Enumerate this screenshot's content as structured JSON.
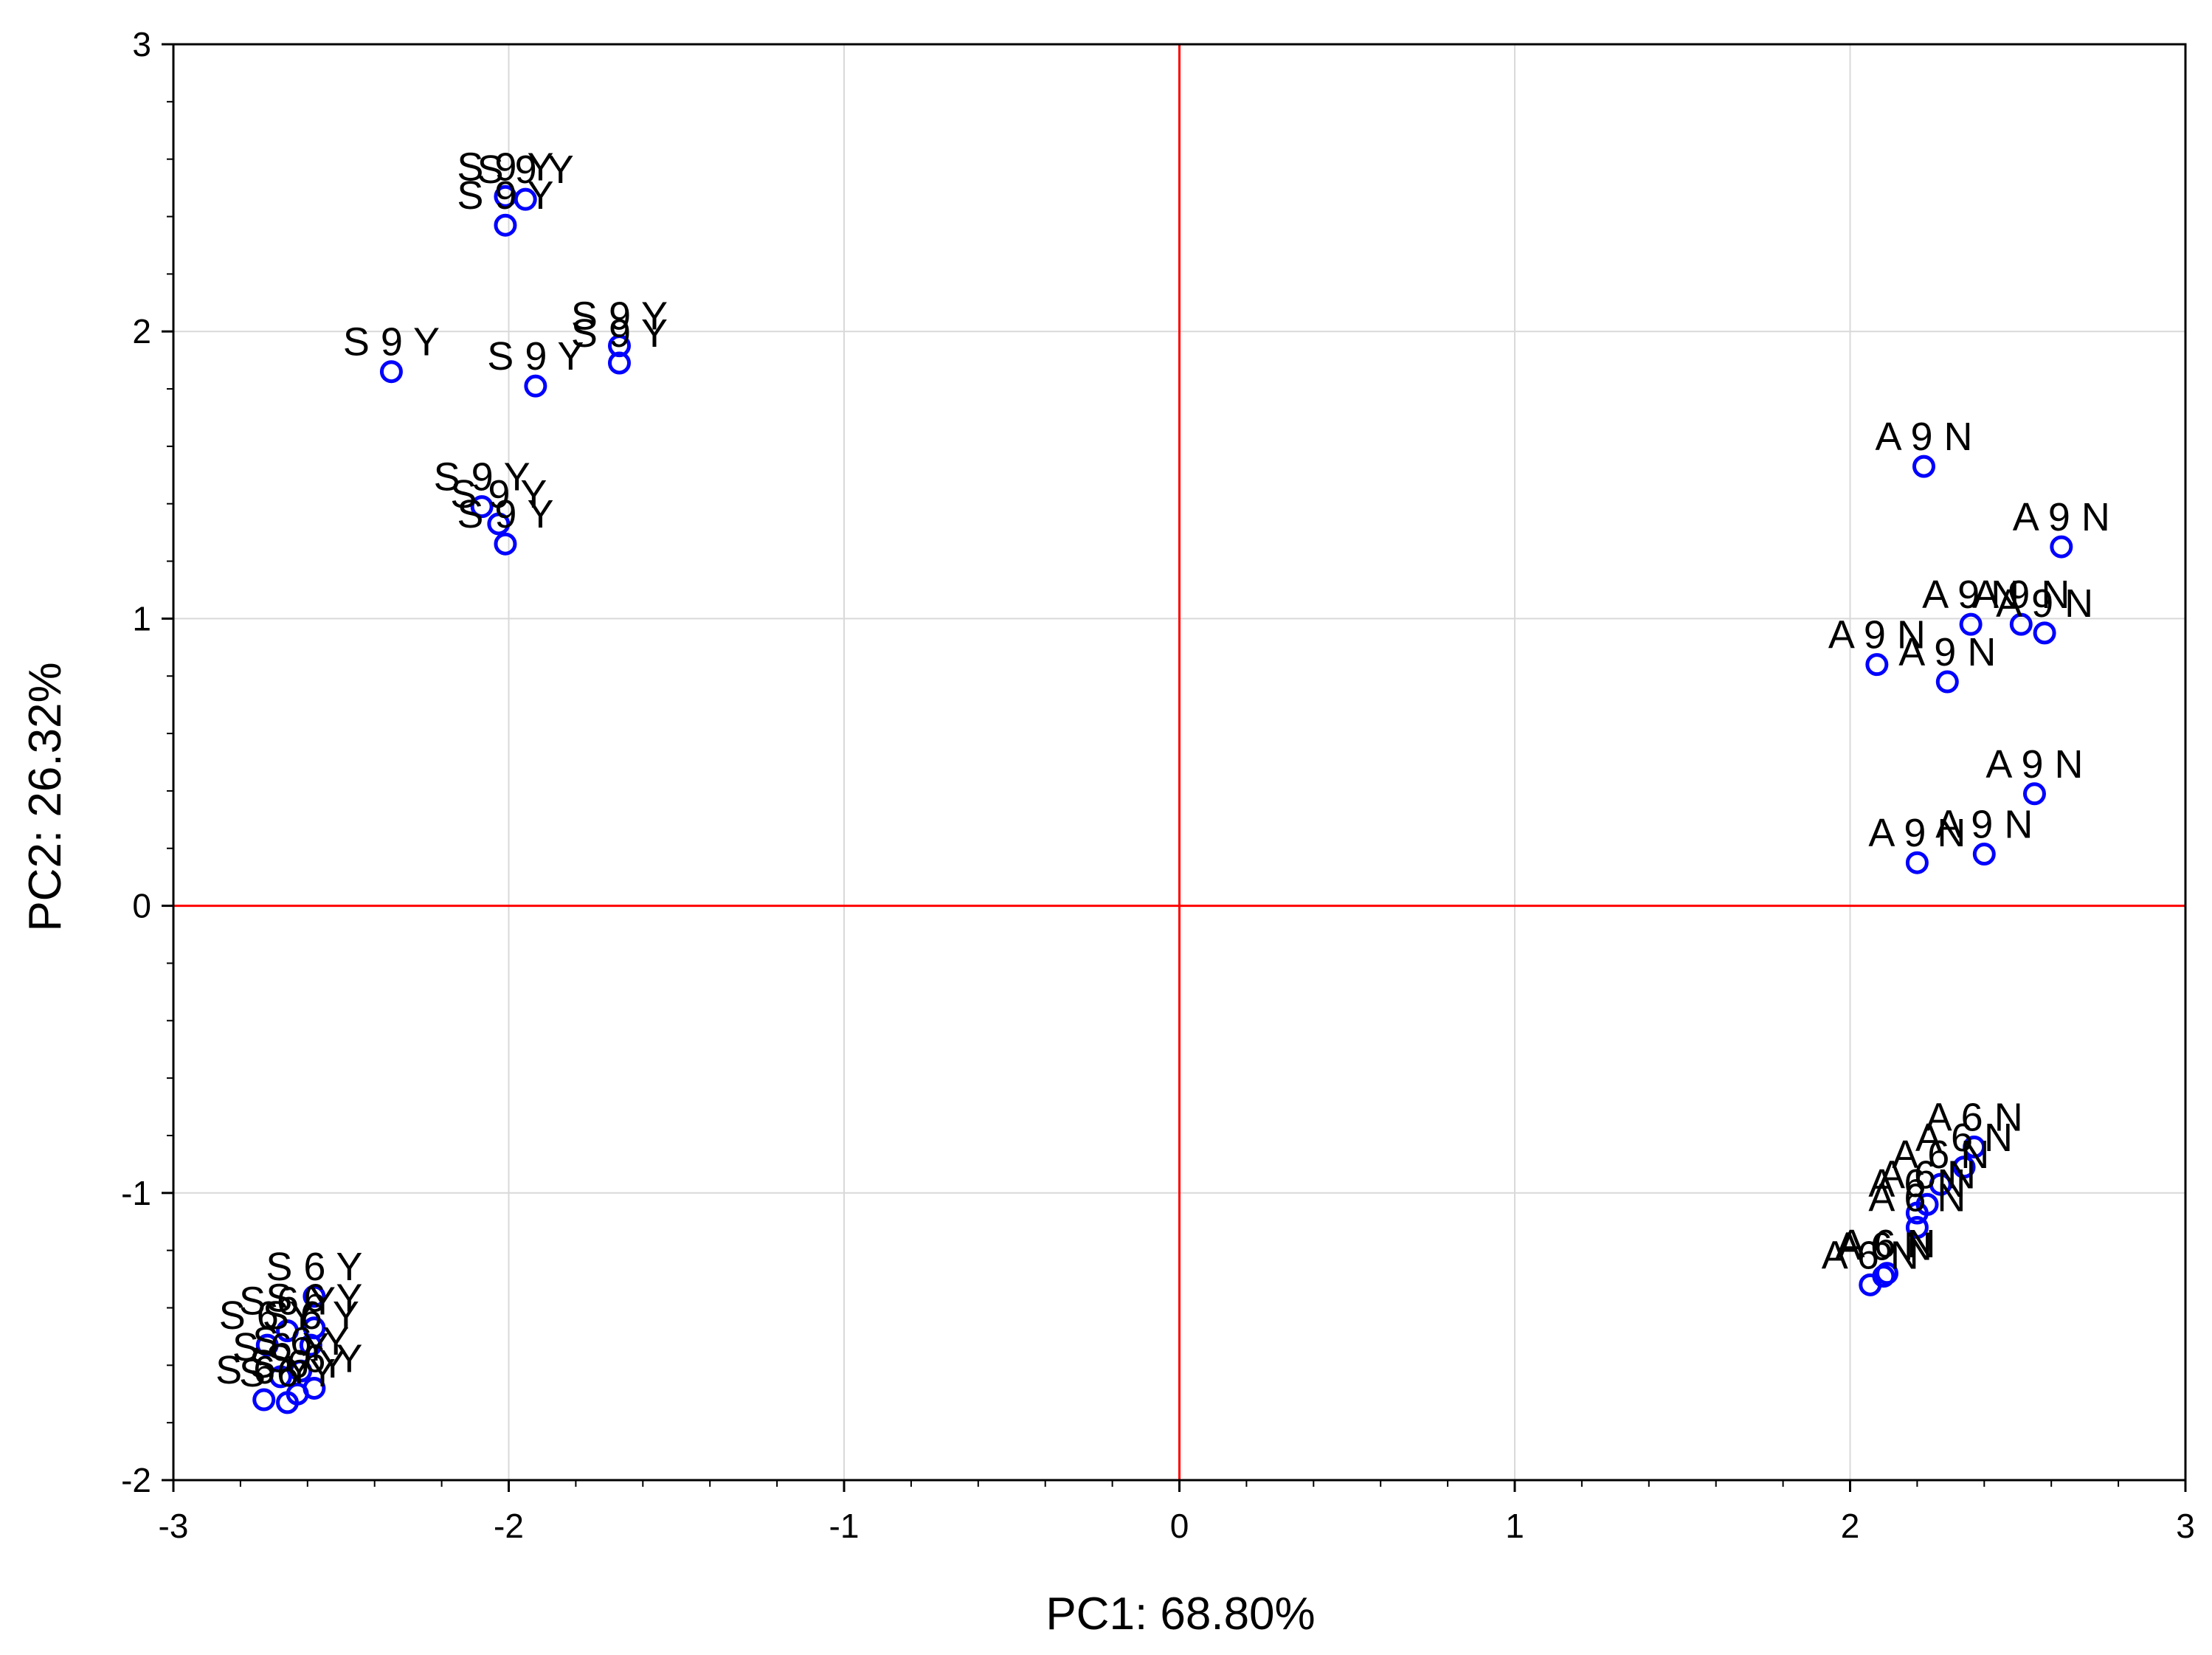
{
  "chart_data": {
    "type": "scatter",
    "title": "",
    "xlabel": "PC1: 68.80%",
    "ylabel": "PC2: 26.32%",
    "xlim": [
      -3,
      3
    ],
    "ylim": [
      -2,
      3
    ],
    "x_ticks": [
      -3,
      -2,
      -1,
      0,
      1,
      2,
      3
    ],
    "y_ticks": [
      -2,
      -1,
      0,
      1,
      2,
      3
    ],
    "x_tick_labels": [
      "-3",
      "-2",
      "-1",
      "0",
      "1",
      "2",
      "3"
    ],
    "y_tick_labels": [
      "-2",
      "-1",
      "0",
      "1",
      "2",
      "3"
    ],
    "grid": true,
    "reference_lines": {
      "x": 0,
      "y": 0,
      "color": "#ff0000"
    },
    "marker": {
      "shape": "open-circle",
      "color": "#0000ff"
    },
    "points": [
      {
        "x": -2.01,
        "y": 2.47,
        "label": "S 9 Y"
      },
      {
        "x": -1.95,
        "y": 2.46,
        "label": "S 9 Y"
      },
      {
        "x": -2.01,
        "y": 2.37,
        "label": "S 9 Y"
      },
      {
        "x": -2.35,
        "y": 1.86,
        "label": "S 9 Y"
      },
      {
        "x": -1.92,
        "y": 1.81,
        "label": "S 9 Y"
      },
      {
        "x": -1.67,
        "y": 1.95,
        "label": "S 9 Y"
      },
      {
        "x": -1.67,
        "y": 1.89,
        "label": "S 9 Y"
      },
      {
        "x": -2.08,
        "y": 1.39,
        "label": "S 9 Y"
      },
      {
        "x": -2.03,
        "y": 1.33,
        "label": "S 9 Y"
      },
      {
        "x": -2.01,
        "y": 1.26,
        "label": "S 9 Y"
      },
      {
        "x": 2.22,
        "y": 1.53,
        "label": "A 9 N"
      },
      {
        "x": 2.63,
        "y": 1.25,
        "label": "A 9 N"
      },
      {
        "x": 2.36,
        "y": 0.98,
        "label": "A 9 N"
      },
      {
        "x": 2.51,
        "y": 0.98,
        "label": "A 9 N"
      },
      {
        "x": 2.58,
        "y": 0.95,
        "label": "A 9 N"
      },
      {
        "x": 2.08,
        "y": 0.84,
        "label": "A 9 N"
      },
      {
        "x": 2.29,
        "y": 0.78,
        "label": "A 9 N"
      },
      {
        "x": 2.55,
        "y": 0.39,
        "label": "A 9 N"
      },
      {
        "x": 2.4,
        "y": 0.18,
        "label": "A 9 N"
      },
      {
        "x": 2.2,
        "y": 0.15,
        "label": "A 9 N"
      },
      {
        "x": 2.37,
        "y": -0.84,
        "label": "A 6 N"
      },
      {
        "x": 2.34,
        "y": -0.91,
        "label": "A 6 N"
      },
      {
        "x": 2.27,
        "y": -0.97,
        "label": "A 6 N"
      },
      {
        "x": 2.23,
        "y": -1.04,
        "label": "A 6 N"
      },
      {
        "x": 2.2,
        "y": -1.07,
        "label": "A 6 N"
      },
      {
        "x": 2.2,
        "y": -1.12,
        "label": "A 6 N"
      },
      {
        "x": 2.11,
        "y": -1.28,
        "label": "A 6 N"
      },
      {
        "x": 2.1,
        "y": -1.29,
        "label": "A 6 N"
      },
      {
        "x": 2.06,
        "y": -1.32,
        "label": "A 6 N"
      },
      {
        "x": -2.58,
        "y": -1.36,
        "label": "S 6 Y"
      },
      {
        "x": -2.58,
        "y": -1.47,
        "label": "S 6 Y"
      },
      {
        "x": -2.66,
        "y": -1.48,
        "label": "S 6 Y"
      },
      {
        "x": -2.59,
        "y": -1.53,
        "label": "S 6 Y"
      },
      {
        "x": -2.72,
        "y": -1.53,
        "label": "S 6 Y"
      },
      {
        "x": -2.62,
        "y": -1.62,
        "label": "S 6 Y"
      },
      {
        "x": -2.68,
        "y": -1.64,
        "label": "S 6 Y"
      },
      {
        "x": -2.58,
        "y": -1.68,
        "label": "S 6 Y"
      },
      {
        "x": -2.63,
        "y": -1.7,
        "label": "S 6 Y"
      },
      {
        "x": -2.73,
        "y": -1.72,
        "label": "S 6 Y"
      },
      {
        "x": -2.66,
        "y": -1.73,
        "label": "S 6 Y"
      }
    ]
  }
}
